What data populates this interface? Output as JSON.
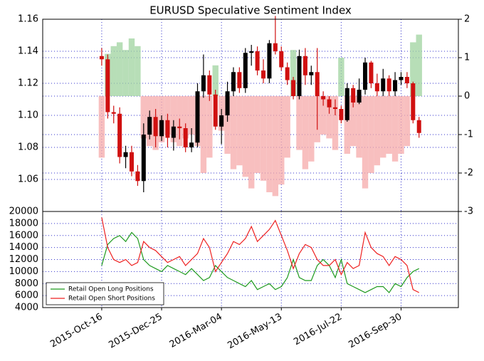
{
  "chart_data": [
    {
      "type": "candlestick",
      "title": "EURUSD Speculative Sentiment Index",
      "x": [
        "2015-10-16",
        "2015-10-23",
        "2015-10-30",
        "2015-11-06",
        "2015-11-13",
        "2015-11-20",
        "2015-11-27",
        "2015-12-04",
        "2015-12-11",
        "2015-12-18",
        "2015-12-25",
        "2016-01-01",
        "2016-01-08",
        "2016-01-15",
        "2016-01-22",
        "2016-01-29",
        "2016-02-05",
        "2016-02-12",
        "2016-02-19",
        "2016-02-26",
        "2016-03-04",
        "2016-03-11",
        "2016-03-18",
        "2016-03-25",
        "2016-04-01",
        "2016-04-08",
        "2016-04-15",
        "2016-04-22",
        "2016-04-29",
        "2016-05-06",
        "2016-05-13",
        "2016-05-20",
        "2016-05-27",
        "2016-06-03",
        "2016-06-10",
        "2016-06-17",
        "2016-06-24",
        "2016-07-01",
        "2016-07-08",
        "2016-07-15",
        "2016-07-22",
        "2016-07-29",
        "2016-08-05",
        "2016-08-12",
        "2016-08-19",
        "2016-08-26",
        "2016-09-02",
        "2016-09-09",
        "2016-09-16",
        "2016-09-23",
        "2016-09-30",
        "2016-10-07",
        "2016-10-14",
        "2016-10-21"
      ],
      "open": [
        1.137,
        1.135,
        1.102,
        1.101,
        1.074,
        1.077,
        1.065,
        1.059,
        1.088,
        1.099,
        1.087,
        1.097,
        1.086,
        1.093,
        1.092,
        1.08,
        1.083,
        1.115,
        1.125,
        1.113,
        1.093,
        1.1,
        1.115,
        1.127,
        1.117,
        1.139,
        1.14,
        1.128,
        1.123,
        1.145,
        1.14,
        1.13,
        1.122,
        1.112,
        1.137,
        1.125,
        1.127,
        1.112,
        1.11,
        1.105,
        1.104,
        1.097,
        1.117,
        1.108,
        1.116,
        1.133,
        1.12,
        1.115,
        1.123,
        1.115,
        1.122,
        1.124,
        1.12,
        1.097
      ],
      "high": [
        1.142,
        1.138,
        1.106,
        1.105,
        1.081,
        1.081,
        1.069,
        1.095,
        1.103,
        1.104,
        1.1,
        1.101,
        1.097,
        1.098,
        1.095,
        1.092,
        1.12,
        1.138,
        1.128,
        1.116,
        1.104,
        1.121,
        1.13,
        1.13,
        1.142,
        1.144,
        1.143,
        1.135,
        1.147,
        1.162,
        1.143,
        1.133,
        1.124,
        1.141,
        1.142,
        1.131,
        1.142,
        1.115,
        1.112,
        1.11,
        1.106,
        1.12,
        1.119,
        1.123,
        1.136,
        1.134,
        1.126,
        1.129,
        1.125,
        1.127,
        1.127,
        1.127,
        1.121,
        1.099
      ],
      "low": [
        1.131,
        1.098,
        1.095,
        1.07,
        1.067,
        1.062,
        1.056,
        1.052,
        1.085,
        1.08,
        1.084,
        1.08,
        1.078,
        1.085,
        1.077,
        1.077,
        1.08,
        1.111,
        1.109,
        1.091,
        1.082,
        1.096,
        1.112,
        1.114,
        1.114,
        1.131,
        1.125,
        1.12,
        1.12,
        1.138,
        1.128,
        1.119,
        1.11,
        1.11,
        1.119,
        1.119,
        1.091,
        1.106,
        1.101,
        1.1,
        1.095,
        1.096,
        1.105,
        1.107,
        1.113,
        1.117,
        1.112,
        1.112,
        1.112,
        1.112,
        1.119,
        1.117,
        1.095,
        1.086
      ],
      "close": [
        1.135,
        1.102,
        1.101,
        1.074,
        1.077,
        1.065,
        1.059,
        1.088,
        1.099,
        1.087,
        1.097,
        1.086,
        1.093,
        1.092,
        1.08,
        1.083,
        1.115,
        1.125,
        1.113,
        1.093,
        1.1,
        1.115,
        1.127,
        1.117,
        1.139,
        1.14,
        1.128,
        1.123,
        1.145,
        1.14,
        1.13,
        1.122,
        1.112,
        1.137,
        1.125,
        1.127,
        1.112,
        1.11,
        1.105,
        1.104,
        1.097,
        1.117,
        1.108,
        1.116,
        1.133,
        1.12,
        1.115,
        1.123,
        1.115,
        1.122,
        1.124,
        1.12,
        1.097,
        1.089
      ],
      "up_color": "#000000",
      "down_color": "#d01010",
      "sentiment": {
        "axis": "y2",
        "pos_color": "#9fd39f",
        "neg_color": "#f5a9a9",
        "values": [
          -1.6,
          1.1,
          1.3,
          1.4,
          1.2,
          1.5,
          1.3,
          -1.1,
          -1.3,
          -1.4,
          -1.2,
          -1.0,
          -1.2,
          -1.3,
          -1.1,
          -1.0,
          -1.3,
          -2.0,
          -1.6,
          0.8,
          -0.9,
          -1.5,
          -1.9,
          -1.8,
          -2.1,
          -2.4,
          -2.0,
          -2.2,
          -2.5,
          -2.6,
          -2.3,
          -1.6,
          1.2,
          -1.4,
          -1.9,
          -1.7,
          -1.2,
          -1.0,
          -1.1,
          -1.4,
          1.0,
          -1.5,
          -1.3,
          -1.6,
          -2.4,
          -2.0,
          -1.8,
          -1.6,
          -1.5,
          -1.7,
          -1.5,
          -1.3,
          1.4,
          1.6
        ]
      },
      "xlim": [
        "2015-08-08",
        "2016-12-06"
      ],
      "ylim": [
        1.04,
        1.16
      ],
      "yticks": [
        1.06,
        1.08,
        {
          "value": 1.1,
          "label": "1.10"
        },
        1.12,
        1.14,
        1.16
      ],
      "y2lim": [
        -3,
        2
      ],
      "y2ticks": [
        -3,
        -2,
        -1,
        0,
        1,
        2
      ],
      "ytick_color": "#0000cc",
      "y2tick_color": "#800080",
      "grid": true
    },
    {
      "type": "line",
      "x": [
        "2015-10-16",
        "2015-10-23",
        "2015-10-30",
        "2015-11-06",
        "2015-11-13",
        "2015-11-20",
        "2015-11-27",
        "2015-12-04",
        "2015-12-11",
        "2015-12-18",
        "2015-12-25",
        "2016-01-01",
        "2016-01-08",
        "2016-01-15",
        "2016-01-22",
        "2016-01-29",
        "2016-02-05",
        "2016-02-12",
        "2016-02-19",
        "2016-02-26",
        "2016-03-04",
        "2016-03-11",
        "2016-03-18",
        "2016-03-25",
        "2016-04-01",
        "2016-04-08",
        "2016-04-15",
        "2016-04-22",
        "2016-04-29",
        "2016-05-06",
        "2016-05-13",
        "2016-05-20",
        "2016-05-27",
        "2016-06-03",
        "2016-06-10",
        "2016-06-17",
        "2016-06-24",
        "2016-07-01",
        "2016-07-08",
        "2016-07-15",
        "2016-07-22",
        "2016-07-29",
        "2016-08-05",
        "2016-08-12",
        "2016-08-19",
        "2016-08-26",
        "2016-09-02",
        "2016-09-09",
        "2016-09-16",
        "2016-09-23",
        "2016-09-30",
        "2016-10-07",
        "2016-10-14",
        "2016-10-21"
      ],
      "series": [
        {
          "name": "Retail Open Long Positions",
          "color": "#1f9a1f",
          "values": [
            11000,
            14500,
            15500,
            16000,
            15000,
            16500,
            15500,
            12000,
            11000,
            10500,
            10000,
            11000,
            10500,
            10000,
            9500,
            10500,
            9500,
            8500,
            9000,
            11000,
            10000,
            9000,
            8500,
            8000,
            7500,
            8500,
            7000,
            7500,
            8000,
            7000,
            7500,
            9000,
            12000,
            9000,
            8500,
            8500,
            11000,
            12000,
            11000,
            9000,
            12000,
            8000,
            7500,
            7000,
            6500,
            7000,
            7500,
            7500,
            6500,
            8000,
            7500,
            9000,
            10000,
            10500
          ]
        },
        {
          "name": "Retail Open Short Positions",
          "color": "#ee2020",
          "values": [
            19000,
            14000,
            12000,
            11500,
            12000,
            11000,
            11500,
            15000,
            14000,
            13500,
            12500,
            11500,
            12000,
            12500,
            11000,
            12000,
            13000,
            15500,
            14000,
            10000,
            11500,
            13000,
            15000,
            14500,
            15500,
            17500,
            15000,
            16000,
            17000,
            18500,
            16000,
            13500,
            10500,
            13000,
            14500,
            14000,
            12000,
            11000,
            11000,
            12000,
            9500,
            11500,
            10500,
            11000,
            16500,
            14000,
            13000,
            12500,
            11000,
            12500,
            12000,
            11000,
            7000,
            6500
          ]
        }
      ],
      "xlim": [
        "2015-08-08",
        "2016-12-06"
      ],
      "xticks": [
        {
          "value": "2015-10-16",
          "label": "2015-Oct-16"
        },
        {
          "value": "2015-12-25",
          "label": "2015-Dec-25"
        },
        {
          "value": "2016-03-04",
          "label": "2016-Mar-04"
        },
        {
          "value": "2016-05-13",
          "label": "2016-May-13"
        },
        {
          "value": "2016-07-22",
          "label": "2016-Jul-22"
        },
        {
          "value": "2016-09-30",
          "label": "2016-Sep-30"
        }
      ],
      "ylim": [
        4000,
        20000
      ],
      "yticks": [
        4000,
        6000,
        8000,
        10000,
        12000,
        14000,
        16000,
        18000,
        20000
      ],
      "legend": "lower left",
      "grid": true
    }
  ]
}
